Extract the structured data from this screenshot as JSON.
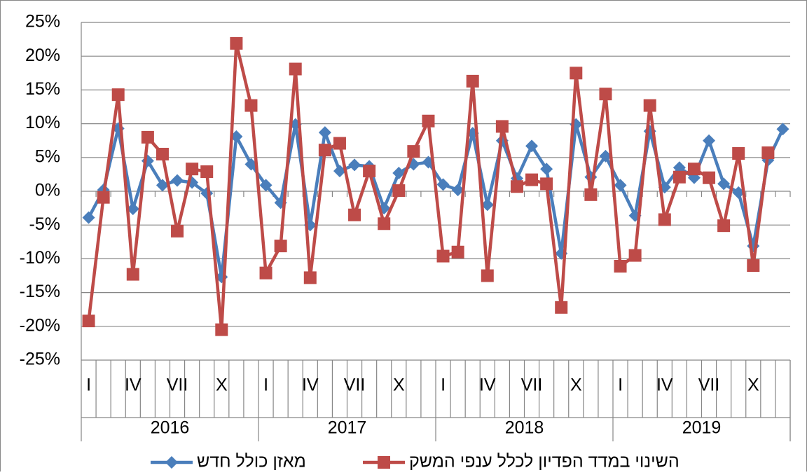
{
  "chart_data": {
    "type": "line",
    "categories": [
      "I",
      null,
      null,
      "IV",
      null,
      null,
      "VII",
      null,
      null,
      "X",
      null,
      null,
      "I",
      null,
      null,
      "IV",
      null,
      null,
      "VII",
      null,
      null,
      "X",
      null,
      null,
      "I",
      null,
      null,
      "IV",
      null,
      null,
      "VII",
      null,
      null,
      "X",
      null,
      null,
      "I",
      null,
      null,
      "IV",
      null,
      null,
      "VII",
      null,
      null,
      "X",
      null,
      null
    ],
    "years": [
      "2016",
      "2017",
      "2018",
      "2019"
    ],
    "series": [
      {
        "name": "מאזן כולל חדש",
        "color": "#4a7ebb",
        "marker": "diamond",
        "values": [
          -3.9,
          0.2,
          9.3,
          -2.6,
          4.5,
          0.9,
          1.6,
          1.3,
          -0.3,
          -12.7,
          8.1,
          4.0,
          0.9,
          -1.7,
          9.9,
          -5.0,
          8.7,
          3.0,
          3.9,
          3.7,
          -2.5,
          2.7,
          4.0,
          4.3,
          1.0,
          0.2,
          8.6,
          -2.0,
          7.5,
          1.9,
          6.7,
          3.3,
          -9.2,
          9.9,
          2.1,
          5.2,
          0.9,
          -3.6,
          8.9,
          0.6,
          3.5,
          2.0,
          7.5,
          1.1,
          -0.2,
          -8.1,
          4.6,
          9.2
        ]
      },
      {
        "name": "השינוי במדד הפדיון לכלל ענפי המשק",
        "color": "#be4b48",
        "marker": "square",
        "values": [
          -19.2,
          -0.9,
          14.3,
          -12.3,
          8.0,
          5.5,
          -5.9,
          3.3,
          2.9,
          -20.5,
          21.9,
          12.7,
          -12.1,
          -8.1,
          18.1,
          -12.8,
          6.1,
          7.1,
          -3.5,
          3.0,
          -4.8,
          0.1,
          5.9,
          10.4,
          -9.6,
          -9.0,
          16.3,
          -12.5,
          9.6,
          0.7,
          1.7,
          1.1,
          -17.2,
          17.5,
          -0.5,
          14.4,
          -11.1,
          -9.5,
          12.7,
          -4.2,
          2.1,
          3.3,
          2.0,
          -5.1,
          5.6,
          -11.0,
          5.7,
          null
        ]
      }
    ],
    "ylim": [
      -25,
      25
    ],
    "yticks": [
      {
        "value": -25,
        "label": "-25%"
      },
      {
        "value": -20,
        "label": "-20%"
      },
      {
        "value": -15,
        "label": "-15%"
      },
      {
        "value": -10,
        "label": "-10%"
      },
      {
        "value": -5,
        "label": "-5%"
      },
      {
        "value": 0,
        "label": "0%"
      },
      {
        "value": 5,
        "label": "5%"
      },
      {
        "value": 10,
        "label": "10%"
      },
      {
        "value": 15,
        "label": "15%"
      },
      {
        "value": 20,
        "label": "20%"
      },
      {
        "value": 25,
        "label": "25%"
      }
    ],
    "grid": true,
    "legend": "bottom"
  }
}
